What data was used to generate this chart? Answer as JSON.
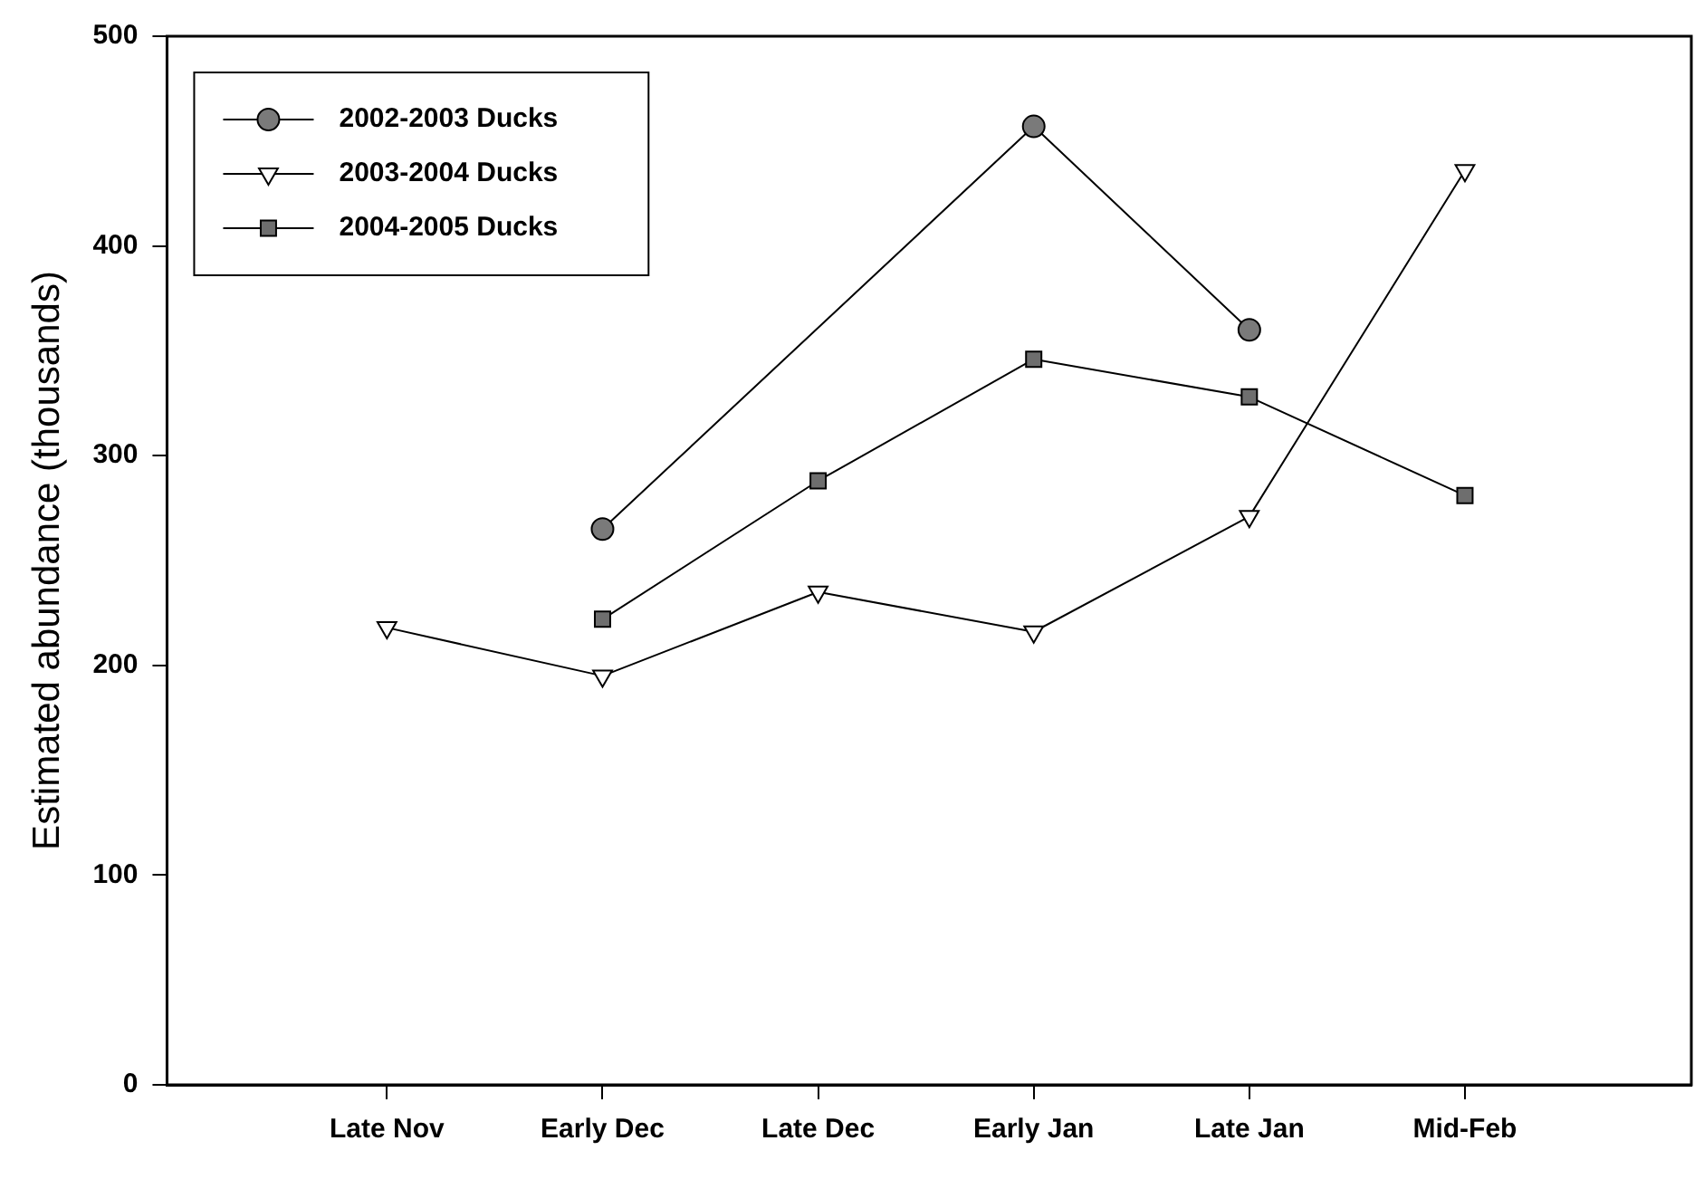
{
  "chart_data": {
    "type": "line",
    "ylabel": "Estimated abundance (thousands)",
    "categories": [
      "Late Nov",
      "Early Dec",
      "Late Dec",
      "Early Jan",
      "Late Jan",
      "Mid-Feb"
    ],
    "ylim": [
      0,
      500
    ],
    "yticks": [
      0,
      100,
      200,
      300,
      400,
      500
    ],
    "grid": false,
    "legend": "top left",
    "line_style": "solid",
    "series": [
      {
        "name": "2002-2003 Ducks",
        "color": "#7a7a7a",
        "marker": "circle",
        "values": [
          null,
          265,
          null,
          457,
          360,
          null
        ]
      },
      {
        "name": "2003-2004 Ducks",
        "color": "#ffffff",
        "marker": "triangle",
        "values": [
          218,
          195,
          235,
          216,
          271,
          436
        ]
      },
      {
        "name": "2004-2005 Ducks",
        "color": "#6e6e6e",
        "marker": "square",
        "values": [
          null,
          222,
          288,
          346,
          328,
          281
        ]
      }
    ]
  }
}
